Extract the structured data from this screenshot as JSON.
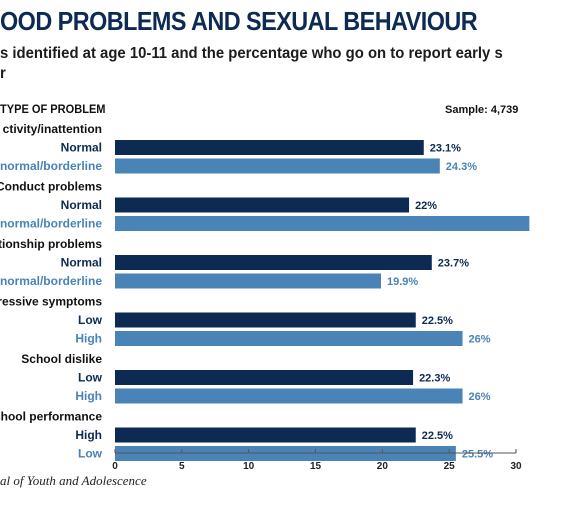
{
  "header": {
    "title": "OOD PROBLEMS AND SEXUAL BEHAVIOUR",
    "subtitle_line1": "s identified at age 10-11 and the percentage who go on to report early s",
    "subtitle_line2": "r",
    "column_heading": "TYPE OF PROBLEM",
    "sample": "Sample: 4,739"
  },
  "source": "al of Youth and Adolescence",
  "colors": {
    "dark": "#0d2a52",
    "light": "#4a83b5",
    "axis": "#555555"
  },
  "chart_data": {
    "type": "bar",
    "orientation": "horizontal",
    "xlim": [
      0,
      30
    ],
    "x_ticks": [
      "0",
      "5",
      "10",
      "15",
      "20",
      "25",
      "30"
    ],
    "grid": false,
    "groups": [
      {
        "label": "ctivity/inattention",
        "bars": [
          {
            "label": "Normal",
            "value": 23.1,
            "value_label": "23.1%",
            "shade": "dark"
          },
          {
            "label": "normal/borderline",
            "value": 24.3,
            "value_label": "24.3%",
            "shade": "light"
          }
        ]
      },
      {
        "label": "Conduct problems",
        "bars": [
          {
            "label": "Normal",
            "value": 22,
            "value_label": "22%",
            "shade": "dark"
          },
          {
            "label": "normal/borderline",
            "value": 31,
            "value_label": "",
            "shade": "light"
          }
        ]
      },
      {
        "label": "ationship problems",
        "bars": [
          {
            "label": "Normal",
            "value": 23.7,
            "value_label": "23.7%",
            "shade": "dark"
          },
          {
            "label": "normal/borderline",
            "value": 19.9,
            "value_label": "19.9%",
            "shade": "light"
          }
        ]
      },
      {
        "label": "pressive symptoms",
        "bars": [
          {
            "label": "Low",
            "value": 22.5,
            "value_label": "22.5%",
            "shade": "dark"
          },
          {
            "label": "High",
            "value": 26,
            "value_label": "26%",
            "shade": "light"
          }
        ]
      },
      {
        "label": "School dislike",
        "bars": [
          {
            "label": "Low",
            "value": 22.3,
            "value_label": "22.3%",
            "shade": "dark"
          },
          {
            "label": "High",
            "value": 26,
            "value_label": "26%",
            "shade": "light"
          }
        ]
      },
      {
        "label": "chool performance",
        "bars": [
          {
            "label": "High",
            "value": 22.5,
            "value_label": "22.5%",
            "shade": "dark"
          },
          {
            "label": "Low",
            "value": 25.5,
            "value_label": "25.5%",
            "shade": "light"
          }
        ]
      }
    ]
  }
}
